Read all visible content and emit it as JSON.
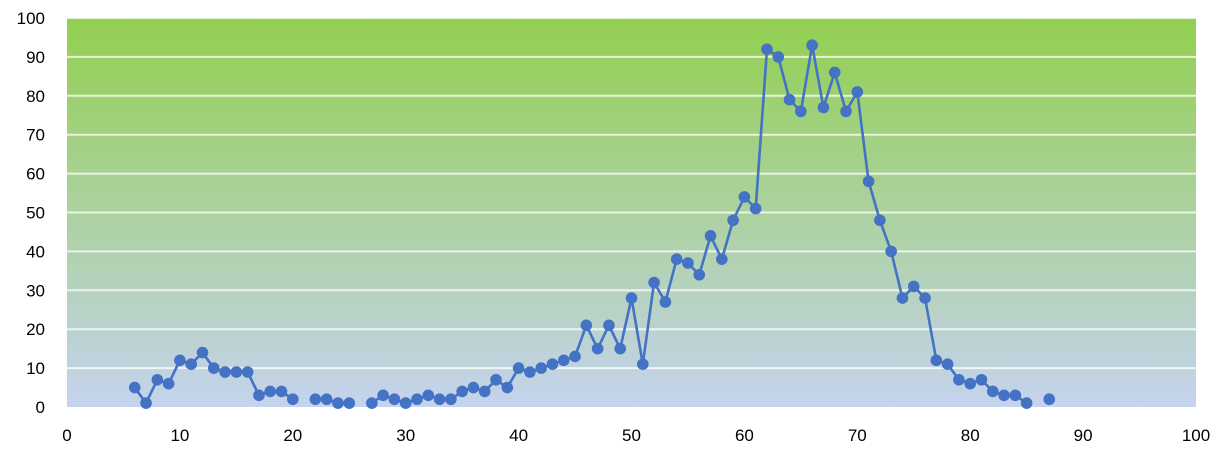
{
  "chart_data": {
    "type": "line",
    "title": "",
    "xlabel": "",
    "ylabel": "",
    "xlim": [
      0,
      100
    ],
    "ylim": [
      0,
      100
    ],
    "x_ticks": [
      0,
      10,
      20,
      30,
      40,
      50,
      60,
      70,
      80,
      90,
      100
    ],
    "y_ticks": [
      0,
      10,
      20,
      30,
      40,
      50,
      60,
      70,
      80,
      90,
      100
    ],
    "x_tick_labels": [
      "0",
      "10",
      "20",
      "30",
      "40",
      "50",
      "60",
      "70",
      "80",
      "90",
      "100"
    ],
    "y_tick_labels": [
      "0",
      "10",
      "20",
      "30",
      "40",
      "50",
      "60",
      "70",
      "80",
      "90",
      "100"
    ],
    "grid": true,
    "legend": "none",
    "background_gradient": {
      "top": "#92d050",
      "bottom": "#c5d3ee"
    },
    "series": [
      {
        "color": "#4472c4",
        "marker": "circle",
        "segments": [
          [
            [
              6,
              5
            ],
            [
              7,
              1
            ],
            [
              8,
              7
            ],
            [
              9,
              6
            ],
            [
              10,
              12
            ],
            [
              11,
              11
            ],
            [
              12,
              14
            ],
            [
              13,
              10
            ],
            [
              14,
              9
            ],
            [
              15,
              9
            ],
            [
              16,
              9
            ],
            [
              17,
              3
            ],
            [
              18,
              4
            ],
            [
              19,
              4
            ],
            [
              20,
              2
            ]
          ],
          [
            [
              22,
              2
            ],
            [
              23,
              2
            ],
            [
              24,
              1
            ],
            [
              25,
              1
            ]
          ],
          [
            [
              27,
              1
            ],
            [
              28,
              3
            ],
            [
              29,
              2
            ],
            [
              30,
              1
            ],
            [
              31,
              2
            ],
            [
              32,
              3
            ],
            [
              33,
              2
            ],
            [
              34,
              2
            ],
            [
              35,
              4
            ],
            [
              36,
              5
            ],
            [
              37,
              4
            ],
            [
              38,
              7
            ],
            [
              39,
              5
            ],
            [
              40,
              10
            ],
            [
              41,
              9
            ],
            [
              42,
              10
            ],
            [
              43,
              11
            ],
            [
              44,
              12
            ],
            [
              45,
              13
            ],
            [
              46,
              21
            ],
            [
              47,
              15
            ],
            [
              48,
              21
            ],
            [
              49,
              15
            ],
            [
              50,
              28
            ],
            [
              51,
              11
            ],
            [
              52,
              32
            ],
            [
              53,
              27
            ],
            [
              54,
              38
            ],
            [
              55,
              37
            ],
            [
              56,
              34
            ],
            [
              57,
              44
            ],
            [
              58,
              38
            ],
            [
              59,
              48
            ],
            [
              60,
              54
            ],
            [
              61,
              51
            ],
            [
              62,
              92
            ],
            [
              63,
              90
            ],
            [
              64,
              79
            ],
            [
              65,
              76
            ],
            [
              66,
              93
            ],
            [
              67,
              77
            ],
            [
              68,
              86
            ],
            [
              69,
              76
            ],
            [
              70,
              81
            ],
            [
              71,
              58
            ],
            [
              72,
              48
            ],
            [
              73,
              40
            ],
            [
              74,
              28
            ],
            [
              75,
              31
            ],
            [
              76,
              28
            ],
            [
              77,
              12
            ],
            [
              78,
              11
            ],
            [
              79,
              7
            ],
            [
              80,
              6
            ],
            [
              81,
              7
            ],
            [
              82,
              4
            ],
            [
              83,
              3
            ],
            [
              84,
              3
            ],
            [
              85,
              1
            ]
          ],
          [
            [
              87,
              2
            ]
          ]
        ]
      }
    ]
  }
}
